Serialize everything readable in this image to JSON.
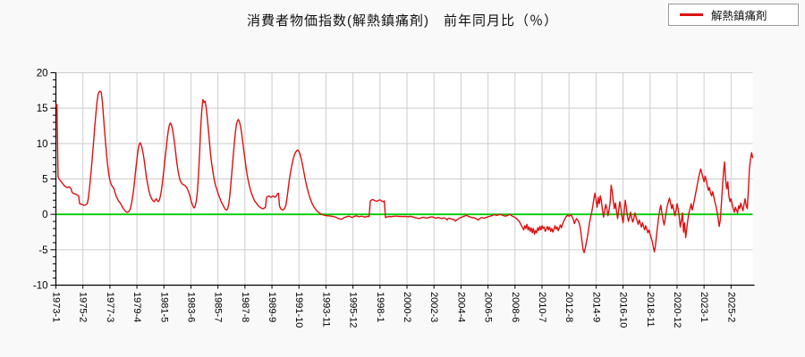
{
  "page": {
    "background": "#f9f9f9"
  },
  "title": "消費者物価指数(解熱鎮痛剤)　前年同月比（％）",
  "legend": {
    "label": "解熱鎮痛剤",
    "line_color": "#dd1111"
  },
  "chart_data": {
    "type": "line",
    "title": "消費者物価指数(解熱鎮痛剤)　前年同月比（％）",
    "series_name": "解熱鎮痛剤",
    "xlabel": "",
    "ylabel": "",
    "ylim": [
      -10,
      20
    ],
    "y_ticks": [
      -10,
      -5,
      0,
      5,
      10,
      15,
      20
    ],
    "grid": true,
    "legend_position": "top-right",
    "line_color": "#dd1111",
    "zero_line_color": "#00cc00",
    "grid_color": "#cccccc",
    "axis_color": "#000000",
    "plot_background": "#ffffff",
    "x_tick_interval": 25,
    "x_tick_labels": [
      "1973-1",
      "1975-2",
      "1977-3",
      "1979-4",
      "1981-5",
      "1983-6",
      "1985-7",
      "1987-8",
      "1989-9",
      "1991-10",
      "1993-11",
      "1995-12",
      "1998-1",
      "2000-2",
      "2002-3",
      "2004-4",
      "2006-5",
      "2008-6",
      "2010-7",
      "2012-8",
      "2014-9",
      "2016-10",
      "2018-11",
      "2020-12",
      "2023-1",
      "2025-2"
    ],
    "values": [
      15.3,
      15.5,
      5.3,
      5.0,
      4.8,
      4.6,
      4.4,
      4.2,
      4.0,
      3.9,
      3.8,
      3.8,
      3.9,
      3.8,
      3.6,
      3.1,
      3.0,
      2.9,
      2.9,
      2.8,
      2.7,
      2.6,
      1.5,
      1.45,
      1.4,
      1.35,
      1.3,
      1.3,
      1.4,
      1.5,
      2.2,
      3.5,
      5.0,
      6.8,
      8.6,
      10.5,
      12.5,
      14.2,
      15.8,
      16.9,
      17.3,
      17.4,
      17.2,
      16.0,
      14.0,
      12.0,
      10.0,
      8.2,
      6.8,
      5.6,
      4.8,
      4.3,
      4.0,
      3.8,
      3.5,
      3.0,
      2.5,
      2.2,
      1.9,
      1.7,
      1.5,
      1.2,
      0.9,
      0.7,
      0.5,
      0.35,
      0.3,
      0.35,
      0.5,
      0.8,
      1.5,
      2.5,
      3.6,
      5.0,
      6.5,
      7.8,
      9.0,
      9.8,
      10.1,
      9.8,
      9.2,
      8.4,
      7.4,
      6.2,
      5.0,
      4.2,
      3.4,
      2.8,
      2.4,
      2.1,
      1.9,
      1.8,
      2.0,
      2.2,
      1.9,
      1.8,
      2.1,
      2.8,
      3.8,
      5.0,
      6.4,
      7.8,
      9.2,
      10.6,
      11.8,
      12.6,
      12.9,
      12.6,
      12.0,
      11.0,
      9.8,
      8.5,
      7.2,
      6.2,
      5.4,
      4.8,
      4.5,
      4.3,
      4.2,
      4.1,
      4.0,
      3.8,
      3.5,
      3.1,
      2.6,
      2.0,
      1.5,
      1.1,
      0.9,
      1.2,
      1.9,
      3.2,
      5.5,
      8.5,
      12.0,
      14.5,
      16.2,
      15.8,
      16.0,
      15.2,
      13.8,
      12.2,
      10.5,
      8.8,
      7.4,
      6.4,
      5.4,
      4.6,
      4.0,
      3.5,
      3.0,
      2.6,
      2.2,
      1.8,
      1.5,
      1.2,
      0.9,
      0.7,
      0.6,
      0.8,
      1.4,
      2.6,
      4.4,
      6.2,
      8.0,
      9.8,
      11.4,
      12.6,
      13.2,
      13.4,
      13.0,
      12.4,
      11.4,
      10.2,
      9.0,
      7.8,
      6.6,
      5.6,
      4.8,
      4.1,
      3.5,
      3.0,
      2.6,
      2.2,
      1.9,
      1.7,
      1.5,
      1.3,
      1.1,
      1.0,
      0.9,
      0.8,
      0.8,
      0.9,
      1.0,
      2.4,
      2.5,
      2.6,
      2.5,
      2.4,
      2.5,
      2.6,
      2.5,
      2.4,
      2.6,
      2.9,
      3.0,
      1.2,
      0.8,
      0.7,
      0.6,
      0.7,
      0.9,
      1.4,
      2.4,
      3.6,
      4.8,
      5.8,
      6.6,
      7.4,
      8.0,
      8.5,
      8.8,
      9.0,
      9.1,
      8.9,
      8.5,
      7.9,
      7.2,
      6.4,
      5.6,
      4.8,
      4.1,
      3.5,
      2.9,
      2.4,
      2.0,
      1.6,
      1.3,
      1.0,
      0.8,
      0.6,
      0.4,
      0.3,
      0.2,
      0.1,
      0.0,
      -0.05,
      -0.1,
      -0.15,
      -0.15,
      -0.2,
      -0.2,
      -0.2,
      -0.25,
      -0.25,
      -0.3,
      -0.3,
      -0.35,
      -0.4,
      -0.5,
      -0.55,
      -0.6,
      -0.65,
      -0.7,
      -0.65,
      -0.55,
      -0.45,
      -0.4,
      -0.35,
      -0.3,
      -0.25,
      -0.3,
      -0.35,
      -0.45,
      -0.4,
      -0.3,
      -0.25,
      -0.2,
      -0.25,
      -0.3,
      -0.35,
      -0.3,
      -0.25,
      -0.3,
      -0.35,
      -0.4,
      -0.35,
      -0.3,
      -0.3,
      -0.3,
      1.9,
      2.0,
      2.1,
      2.05,
      1.95,
      1.9,
      1.85,
      1.9,
      2.0,
      2.05,
      1.95,
      1.85,
      1.8,
      1.9,
      -0.45,
      -0.4,
      -0.35,
      -0.3,
      -0.3,
      -0.35,
      -0.3,
      -0.3,
      -0.28,
      -0.26,
      -0.25,
      -0.25,
      -0.3,
      -0.3,
      -0.28,
      -0.3,
      -0.32,
      -0.3,
      -0.28,
      -0.3,
      -0.32,
      -0.35,
      -0.3,
      -0.28,
      -0.3,
      -0.35,
      -0.4,
      -0.45,
      -0.5,
      -0.52,
      -0.55,
      -0.6,
      -0.55,
      -0.5,
      -0.45,
      -0.42,
      -0.45,
      -0.5,
      -0.55,
      -0.5,
      -0.45,
      -0.4,
      -0.38,
      -0.35,
      -0.4,
      -0.45,
      -0.5,
      -0.55,
      -0.5,
      -0.45,
      -0.5,
      -0.55,
      -0.6,
      -0.55,
      -0.5,
      -0.55,
      -0.6,
      -0.8,
      -0.6,
      -0.55,
      -0.6,
      -0.65,
      -0.7,
      -0.75,
      -0.8,
      -0.95,
      -0.8,
      -0.7,
      -0.6,
      -0.5,
      -0.45,
      -0.4,
      -0.3,
      -0.25,
      -0.2,
      -0.1,
      -0.2,
      -0.3,
      -0.35,
      -0.4,
      -0.45,
      -0.5,
      -0.45,
      -0.55,
      -0.6,
      -0.7,
      -0.8,
      -0.65,
      -0.55,
      -0.45,
      -0.5,
      -0.55,
      -0.5,
      -0.45,
      -0.4,
      -0.35,
      -0.3,
      -0.25,
      -0.2,
      -0.15,
      -0.1,
      -0.05,
      -0.1,
      -0.15,
      -0.1,
      -0.05,
      0.0,
      -0.05,
      -0.1,
      -0.15,
      -0.2,
      -0.25,
      -0.2,
      -0.15,
      -0.1,
      0.0,
      -0.1,
      -0.2,
      -0.3,
      -0.35,
      -0.45,
      -0.55,
      -0.7,
      -0.85,
      -1.0,
      -1.3,
      -1.6,
      -1.9,
      -2.2,
      -1.6,
      -2.0,
      -1.4,
      -2.2,
      -1.8,
      -2.4,
      -1.9,
      -2.6,
      -2.0,
      -2.8,
      -2.3,
      -2.6,
      -1.9,
      -2.3,
      -1.7,
      -2.2,
      -1.6,
      -2.0,
      -1.8,
      -2.4,
      -2.1,
      -1.7,
      -2.2,
      -1.8,
      -2.4,
      -2.0,
      -2.5,
      -2.1,
      -1.6,
      -2.1,
      -1.8,
      -2.3,
      -1.9,
      -1.5,
      -1.9,
      -1.4,
      -1.0,
      -0.7,
      -0.4,
      -0.2,
      -0.1,
      -0.3,
      -0.15,
      -0.1,
      -0.4,
      -0.7,
      -1.3,
      -0.9,
      -0.6,
      -0.8,
      -1.1,
      -1.6,
      -2.6,
      -3.8,
      -5.0,
      -5.4,
      -4.8,
      -4.0,
      -3.2,
      -2.2,
      -1.2,
      -0.4,
      0.3,
      1.2,
      2.2,
      3.0,
      2.0,
      1.0,
      2.4,
      1.5,
      2.6,
      1.8,
      0.6,
      -0.4,
      0.5,
      1.4,
      0.8,
      -0.2,
      0.6,
      1.6,
      4.1,
      3.2,
      1.8,
      0.8,
      1.6,
      0.4,
      -0.6,
      0.6,
      1.8,
      0.9,
      -0.3,
      -1.2,
      0.3,
      2.0,
      1.0,
      -0.2,
      -1.0,
      -0.4,
      0.3,
      -0.5,
      -1.1,
      -0.6,
      0.2,
      -0.4,
      -0.9,
      -1.4,
      -0.8,
      -1.3,
      -1.8,
      -1.2,
      -1.7,
      -2.2,
      -1.6,
      -2.1,
      -2.6,
      -2.2,
      -2.8,
      -3.3,
      -3.8,
      -4.6,
      -5.3,
      -4.4,
      -3.0,
      -1.6,
      -0.4,
      0.6,
      1.3,
      0.2,
      -0.8,
      -1.5,
      -0.6,
      0.4,
      1.2,
      1.8,
      2.3,
      1.6,
      0.8,
      1.4,
      0.6,
      -0.2,
      0.5,
      1.5,
      0.8,
      -0.4,
      -1.8,
      -0.9,
      0.2,
      -2.5,
      -1.2,
      -3.3,
      -2.0,
      -0.8,
      0.2,
      0.8,
      1.5,
      0.6,
      1.2,
      2.0,
      2.8,
      3.6,
      4.4,
      5.2,
      5.9,
      6.4,
      5.8,
      5.2,
      4.6,
      5.4,
      4.8,
      4.0,
      3.4,
      3.8,
      3.0,
      2.6,
      3.2,
      2.5,
      1.8,
      1.2,
      0.4,
      -0.6,
      -1.7,
      -0.8,
      1.5,
      3.8,
      6.0,
      7.4,
      4.8,
      3.6,
      4.6,
      2.6,
      1.8,
      2.2,
      1.4,
      0.8,
      0.3,
      1.0,
      0.6,
      0.2,
      1.2,
      0.8,
      1.6,
      1.0,
      0.5,
      1.4,
      2.2,
      1.2,
      0.8,
      3.5,
      6.5,
      7.8,
      8.7,
      8.0
    ]
  }
}
